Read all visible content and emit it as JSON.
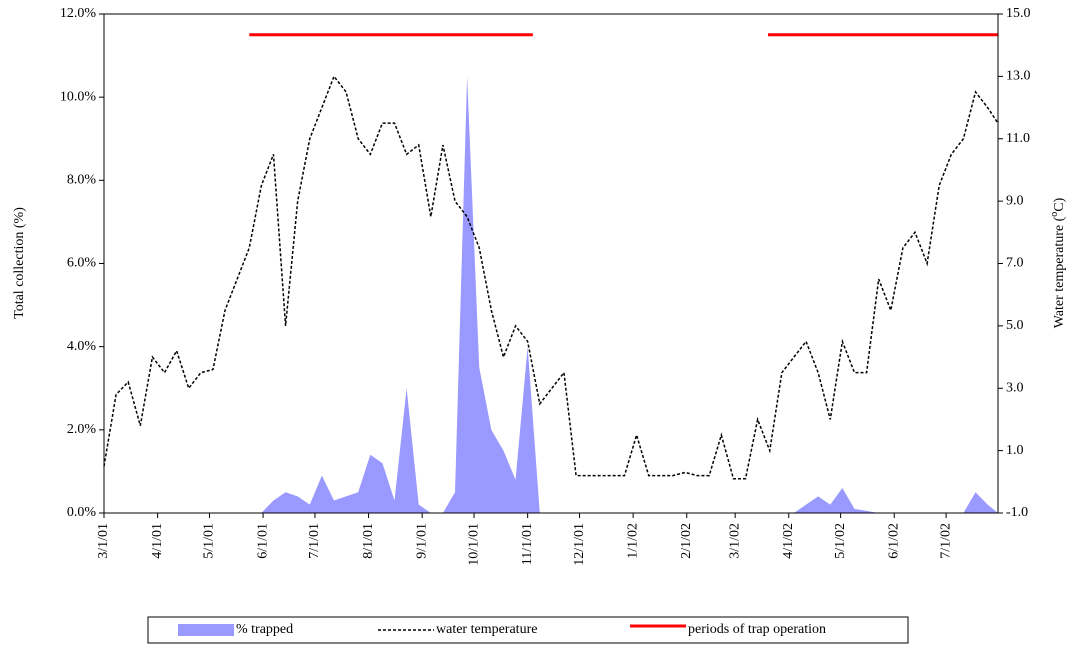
{
  "chart_data": {
    "type": "area-line",
    "ylabel": "Total collection (%)",
    "y2label": [
      "Water temperature (",
      "o",
      "C)"
    ],
    "ylim": [
      0,
      12
    ],
    "yticks": [
      {
        "value": 0,
        "label": "0.0%"
      },
      {
        "value": 2,
        "label": "2.0%"
      },
      {
        "value": 4,
        "label": "4.0%"
      },
      {
        "value": 6,
        "label": "6.0%"
      },
      {
        "value": 8,
        "label": "8.0%"
      },
      {
        "value": 10,
        "label": "10.0%"
      },
      {
        "value": 12,
        "label": "12.0%"
      }
    ],
    "y2lim": [
      -1,
      15
    ],
    "y2ticks": [
      {
        "value": -1,
        "label": "-1.0"
      },
      {
        "value": 1,
        "label": "1.0"
      },
      {
        "value": 3,
        "label": "3.0"
      },
      {
        "value": 5,
        "label": "5.0"
      },
      {
        "value": 7,
        "label": "7.0"
      },
      {
        "value": 9,
        "label": "9.0"
      },
      {
        "value": 11,
        "label": "11.0"
      },
      {
        "value": 13,
        "label": "13.0"
      },
      {
        "value": 15,
        "label": "15.0"
      }
    ],
    "xlim": [
      "3/1/01",
      "7/31/02"
    ],
    "xticks": [
      "3/1/01",
      "4/1/01",
      "5/1/01",
      "6/1/01",
      "7/1/01",
      "8/1/01",
      "9/1/01",
      "10/1/01",
      "11/1/01",
      "12/1/01",
      "1/1/02",
      "2/1/02",
      "3/1/02",
      "4/1/02",
      "5/1/02",
      "6/1/02",
      "7/1/02"
    ],
    "x": [
      "3/1/01",
      "3/8/01",
      "3/15/01",
      "3/22/01",
      "3/29/01",
      "4/5/01",
      "4/12/01",
      "4/19/01",
      "4/26/01",
      "5/3/01",
      "5/10/01",
      "5/17/01",
      "5/24/01",
      "5/31/01",
      "6/7/01",
      "6/14/01",
      "6/21/01",
      "6/28/01",
      "7/5/01",
      "7/12/01",
      "7/19/01",
      "7/26/01",
      "8/2/01",
      "8/9/01",
      "8/16/01",
      "8/23/01",
      "8/30/01",
      "9/6/01",
      "9/13/01",
      "9/20/01",
      "9/27/01",
      "10/4/01",
      "10/11/01",
      "10/18/01",
      "10/25/01",
      "11/1/01",
      "11/8/01",
      "11/15/01",
      "11/22/01",
      "11/29/01",
      "12/6/01",
      "12/13/01",
      "12/20/01",
      "12/27/01",
      "1/3/02",
      "1/10/02",
      "1/17/02",
      "1/24/02",
      "1/31/02",
      "2/7/02",
      "2/14/02",
      "2/21/02",
      "2/28/02",
      "3/7/02",
      "3/14/02",
      "3/21/02",
      "3/28/02",
      "4/4/02",
      "4/11/02",
      "4/18/02",
      "4/25/02",
      "5/2/02",
      "5/9/02",
      "5/16/02",
      "5/23/02",
      "5/30/02",
      "6/6/02",
      "6/13/02",
      "6/20/02",
      "6/27/02",
      "7/4/02",
      "7/11/02",
      "7/18/02",
      "7/25/02",
      "7/31/02"
    ],
    "series": [
      {
        "name": "% trapped",
        "kind": "area",
        "color": "#9999ff",
        "values": [
          0,
          0,
          0,
          0,
          0,
          0,
          0,
          0,
          0,
          0,
          0,
          0,
          0,
          0,
          0.3,
          0.5,
          0.4,
          0.2,
          0.9,
          0.3,
          0.4,
          0.5,
          1.4,
          1.2,
          0.3,
          3.0,
          0.2,
          0,
          0,
          0.5,
          10.5,
          3.5,
          2.0,
          1.5,
          0.8,
          4.0,
          0,
          0,
          0,
          0,
          0,
          0,
          0,
          0,
          0,
          0,
          0,
          0,
          0,
          0,
          0,
          0,
          0,
          0,
          0,
          0,
          0,
          0,
          0.2,
          0.4,
          0.2,
          0.6,
          0.1,
          0.05,
          0,
          0,
          0,
          0,
          0,
          0,
          0,
          0,
          0.5,
          0.2,
          0
        ]
      },
      {
        "name": "water temperature",
        "kind": "line",
        "axis": "y2",
        "color": "#000000",
        "values": [
          0.5,
          2.8,
          3.2,
          1.8,
          4.0,
          3.5,
          4.2,
          3.0,
          3.5,
          3.6,
          5.5,
          6.5,
          7.5,
          9.5,
          10.5,
          5.0,
          9.0,
          11.0,
          12.0,
          13.0,
          12.5,
          11.0,
          10.5,
          11.5,
          11.5,
          10.5,
          10.8,
          8.5,
          10.8,
          9.0,
          8.5,
          7.5,
          5.5,
          4.0,
          5.0,
          4.5,
          2.5,
          3.0,
          3.5,
          0.2,
          0.2,
          0.2,
          0.2,
          0.2,
          1.5,
          0.2,
          0.2,
          0.2,
          0.3,
          0.2,
          0.2,
          1.5,
          0.1,
          0.1,
          2.0,
          1.0,
          3.5,
          4.0,
          4.5,
          3.5,
          2.0,
          4.5,
          3.5,
          3.5,
          6.5,
          5.5,
          7.5,
          8.0,
          7.0,
          9.5,
          10.5,
          11.0,
          12.5,
          12.0,
          11.5
        ]
      },
      {
        "name": "periods of trap operation",
        "kind": "periods",
        "color": "#ff0000",
        "level": 11.5,
        "periods": [
          [
            "5/24/01",
            "11/4/01"
          ],
          [
            "3/20/02",
            "7/31/02"
          ]
        ]
      }
    ]
  }
}
